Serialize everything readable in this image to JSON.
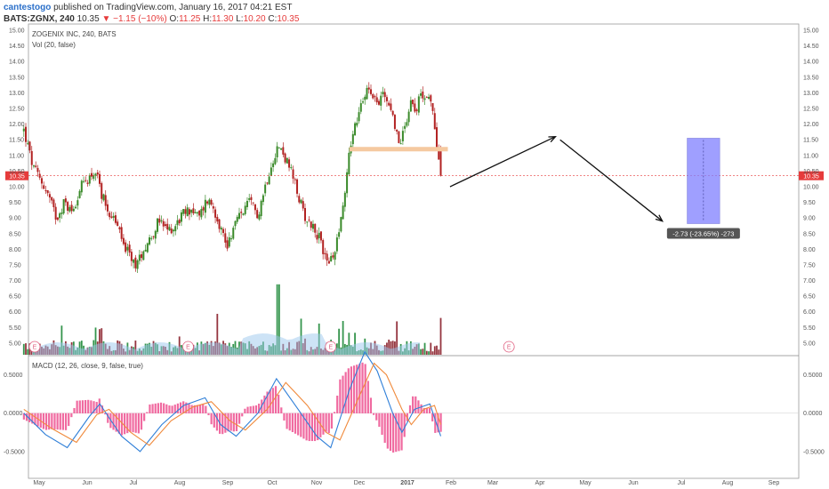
{
  "header": {
    "author": "cantestogo",
    "published_text": "published on TradingView.com, January 16, 2017 04:21 EST",
    "symbol": "BATS:ZGNX, 240",
    "last": "10.35",
    "change": "▼ −1.15 (−10%)",
    "open_label": "O:",
    "open": "11.25",
    "high_label": "H:",
    "high": "11.30",
    "low_label": "L:",
    "low": "10.20",
    "close_label": "C:",
    "close": "10.35"
  },
  "price_pane": {
    "legend_title": "ZOGENIX INC, 240, BATS",
    "legend_vol": "Vol (20, false)",
    "last_price_tag": "10.35",
    "measure_label": "-2.73 (-23.65%) -273",
    "earnings_marker": "E"
  },
  "macd_pane": {
    "legend": "MACD (12, 26, close, 9, false, true)"
  },
  "colors": {
    "up": "#3a8a2a",
    "down": "#b22222",
    "macd": "#2f7fd8",
    "signal": "#f08a3c",
    "hist": "#f06aa0",
    "range_box": "#8080ff",
    "support": "#f5c9a0",
    "price_line": "#e63b3b"
  },
  "chart_data": [
    {
      "type": "candlestick",
      "title": "ZOGENIX INC, 240, BATS",
      "x_ticks": [
        "May",
        "Jun",
        "Jul",
        "Aug",
        "Sep",
        "Oct",
        "Nov",
        "Dec",
        "2017",
        "Feb",
        "Mar",
        "Apr",
        "May",
        "Jun",
        "Jul",
        "Aug",
        "Sep"
      ],
      "y_ticks": [
        "15.00",
        "14.50",
        "14.00",
        "13.50",
        "13.00",
        "12.50",
        "12.00",
        "11.50",
        "11.00",
        "10.50",
        "10.00",
        "9.50",
        "9.00",
        "8.50",
        "8.00",
        "7.50",
        "7.00",
        "6.50",
        "6.00",
        "5.50",
        "5.00"
      ],
      "ylim": [
        4.6,
        15.2
      ],
      "close_path": [
        {
          "x": "Apr 22 2016",
          "y": 11.8
        },
        {
          "x": "Apr 28 2016",
          "y": 10.6
        },
        {
          "x": "May 3 2016",
          "y": 10.2
        },
        {
          "x": "May 8 2016",
          "y": 9.7
        },
        {
          "x": "May 13 2016",
          "y": 9.0
        },
        {
          "x": "May 18 2016",
          "y": 9.5
        },
        {
          "x": "May 23 2016",
          "y": 9.2
        },
        {
          "x": "May 29 2016",
          "y": 10.0
        },
        {
          "x": "Jun 3 2016",
          "y": 10.3
        },
        {
          "x": "Jun 7 2016",
          "y": 10.5
        },
        {
          "x": "Jun 11 2016",
          "y": 9.8
        },
        {
          "x": "Jun 16 2016",
          "y": 9.2
        },
        {
          "x": "Jun 21 2016",
          "y": 8.8
        },
        {
          "x": "Jun 25 2016",
          "y": 8.2
        },
        {
          "x": "Jun 30 2016",
          "y": 7.7
        },
        {
          "x": "Jul 4 2016",
          "y": 7.5
        },
        {
          "x": "Jul 8 2016",
          "y": 8.0
        },
        {
          "x": "Jul 13 2016",
          "y": 8.4
        },
        {
          "x": "Jul 18 2016",
          "y": 8.9
        },
        {
          "x": "Jul 23 2016",
          "y": 8.6
        },
        {
          "x": "Jul 28 2016",
          "y": 8.7
        },
        {
          "x": "Aug 2 2016",
          "y": 9.1
        },
        {
          "x": "Aug 8 2016",
          "y": 9.3
        },
        {
          "x": "Aug 13 2016",
          "y": 9.0
        },
        {
          "x": "Aug 18 2016",
          "y": 9.6
        },
        {
          "x": "Aug 22 2016",
          "y": 9.4
        },
        {
          "x": "Aug 27 2016",
          "y": 8.7
        },
        {
          "x": "Aug 31 2016",
          "y": 8.1
        },
        {
          "x": "Sep 5 2016",
          "y": 8.8
        },
        {
          "x": "Sep 10 2016",
          "y": 9.2
        },
        {
          "x": "Sep 15 2016",
          "y": 9.5
        },
        {
          "x": "Sep 20 2016",
          "y": 9.1
        },
        {
          "x": "Sep 24 2016",
          "y": 9.9
        },
        {
          "x": "Sep 29 2016",
          "y": 10.8
        },
        {
          "x": "Oct 3 2016",
          "y": 11.3
        },
        {
          "x": "Oct 7 2016",
          "y": 11.0
        },
        {
          "x": "Oct 12 2016",
          "y": 10.4
        },
        {
          "x": "Oct 16 2016",
          "y": 9.7
        },
        {
          "x": "Oct 21 2016",
          "y": 9.0
        },
        {
          "x": "Oct 26 2016",
          "y": 8.7
        },
        {
          "x": "Oct 30 2016",
          "y": 8.3
        },
        {
          "x": "Nov 3 2016",
          "y": 7.7
        },
        {
          "x": "Nov 7 2016",
          "y": 7.6
        },
        {
          "x": "Nov 11 2016",
          "y": 8.6
        },
        {
          "x": "Nov 15 2016",
          "y": 9.7
        },
        {
          "x": "Nov 18 2016",
          "y": 11.2
        },
        {
          "x": "Nov 22 2016",
          "y": 12.0
        },
        {
          "x": "Nov 26 2016",
          "y": 12.6
        },
        {
          "x": "Nov 30 2016",
          "y": 13.3
        },
        {
          "x": "Dec 3 2016",
          "y": 13.0
        },
        {
          "x": "Dec 7 2016",
          "y": 12.6
        },
        {
          "x": "Dec 10 2016",
          "y": 13.1
        },
        {
          "x": "Dec 13 2016",
          "y": 12.7
        },
        {
          "x": "Dec 17 2016",
          "y": 12.1
        },
        {
          "x": "Dec 20 2016",
          "y": 11.3
        },
        {
          "x": "Dec 24 2016",
          "y": 12.0
        },
        {
          "x": "Dec 28 2016",
          "y": 12.8
        },
        {
          "x": "Dec 31 2016",
          "y": 12.5
        },
        {
          "x": "Jan 4 2017",
          "y": 13.0
        },
        {
          "x": "Jan 7 2017",
          "y": 12.9
        },
        {
          "x": "Jan 10 2017",
          "y": 12.6
        },
        {
          "x": "Jan 13 2017",
          "y": 11.6
        },
        {
          "x": "Jan 16 2017",
          "y": 10.35
        }
      ],
      "last_price": 10.35,
      "support_zone": {
        "start": "Nov 18 2016",
        "end": "Jan 16 2017",
        "y": 11.2
      },
      "projection_arrows": [
        {
          "from": {
            "x": "Jan 22 2017",
            "y": 10.0
          },
          "to": {
            "x": "Mar 31 2017",
            "y": 11.6
          }
        },
        {
          "from": {
            "x": "Apr 3 2017",
            "y": 11.5
          },
          "to": {
            "x": "Jun 8 2017",
            "y": 8.9
          }
        }
      ],
      "measure_box": {
        "start": "Jun 24 2017",
        "end": "Jul 15 2017",
        "top": 11.55,
        "bottom": 8.82,
        "change": -2.73,
        "change_pct": -23.65,
        "ticks": -273
      },
      "earnings_events": [
        "Apr 29 2016",
        "Aug 6 2016",
        "Nov 6 2016",
        "Mar 1 2017"
      ]
    },
    {
      "type": "line",
      "title": "MACD (12, 26, close, 9, false, true)",
      "y_ticks": [
        "0.5000",
        "0.0000",
        "-0.5000"
      ],
      "ylim": [
        -0.85,
        0.75
      ],
      "series": [
        {
          "name": "MACD",
          "values": [
            {
              "x": "Apr 22 2016",
              "y": 0.0
            },
            {
              "x": "May 6 2016",
              "y": -0.28
            },
            {
              "x": "May 20 2016",
              "y": -0.45
            },
            {
              "x": "Jun 3 2016",
              "y": -0.05
            },
            {
              "x": "Jun 10 2016",
              "y": 0.12
            },
            {
              "x": "Jun 24 2016",
              "y": -0.3
            },
            {
              "x": "Jul 6 2016",
              "y": -0.5
            },
            {
              "x": "Jul 20 2016",
              "y": -0.15
            },
            {
              "x": "Aug 3 2016",
              "y": 0.1
            },
            {
              "x": "Aug 17 2016",
              "y": 0.2
            },
            {
              "x": "Aug 27 2016",
              "y": -0.15
            },
            {
              "x": "Sep 6 2016",
              "y": -0.3
            },
            {
              "x": "Sep 20 2016",
              "y": 0.0
            },
            {
              "x": "Oct 2 2016",
              "y": 0.45
            },
            {
              "x": "Oct 16 2016",
              "y": 0.05
            },
            {
              "x": "Oct 28 2016",
              "y": -0.3
            },
            {
              "x": "Nov 6 2016",
              "y": -0.45
            },
            {
              "x": "Nov 18 2016",
              "y": 0.3
            },
            {
              "x": "Nov 28 2016",
              "y": 0.8
            },
            {
              "x": "Dec 6 2016",
              "y": 0.55
            },
            {
              "x": "Dec 16 2016",
              "y": 0.0
            },
            {
              "x": "Dec 22 2016",
              "y": -0.25
            },
            {
              "x": "Dec 30 2016",
              "y": 0.05
            },
            {
              "x": "Jan 9 2017",
              "y": 0.12
            },
            {
              "x": "Jan 16 2017",
              "y": -0.3
            }
          ]
        },
        {
          "name": "Signal",
          "values": [
            {
              "x": "Apr 22 2016",
              "y": 0.05
            },
            {
              "x": "May 10 2016",
              "y": -0.2
            },
            {
              "x": "May 26 2016",
              "y": -0.38
            },
            {
              "x": "Jun 8 2016",
              "y": -0.02
            },
            {
              "x": "Jun 16 2016",
              "y": 0.05
            },
            {
              "x": "Jun 30 2016",
              "y": -0.25
            },
            {
              "x": "Jul 12 2016",
              "y": -0.42
            },
            {
              "x": "Jul 26 2016",
              "y": -0.1
            },
            {
              "x": "Aug 9 2016",
              "y": 0.08
            },
            {
              "x": "Aug 21 2016",
              "y": 0.15
            },
            {
              "x": "Sep 2 2016",
              "y": -0.1
            },
            {
              "x": "Sep 12 2016",
              "y": -0.22
            },
            {
              "x": "Sep 26 2016",
              "y": 0.05
            },
            {
              "x": "Oct 8 2016",
              "y": 0.4
            },
            {
              "x": "Oct 22 2016",
              "y": 0.1
            },
            {
              "x": "Nov 3 2016",
              "y": -0.25
            },
            {
              "x": "Nov 12 2016",
              "y": -0.35
            },
            {
              "x": "Nov 24 2016",
              "y": 0.2
            },
            {
              "x": "Dec 4 2016",
              "y": 0.65
            },
            {
              "x": "Dec 12 2016",
              "y": 0.5
            },
            {
              "x": "Dec 22 2016",
              "y": 0.05
            },
            {
              "x": "Dec 28 2016",
              "y": -0.15
            },
            {
              "x": "Jan 5 2017",
              "y": 0.05
            },
            {
              "x": "Jan 12 2017",
              "y": 0.1
            },
            {
              "x": "Jan 16 2017",
              "y": -0.15
            }
          ]
        }
      ]
    }
  ]
}
